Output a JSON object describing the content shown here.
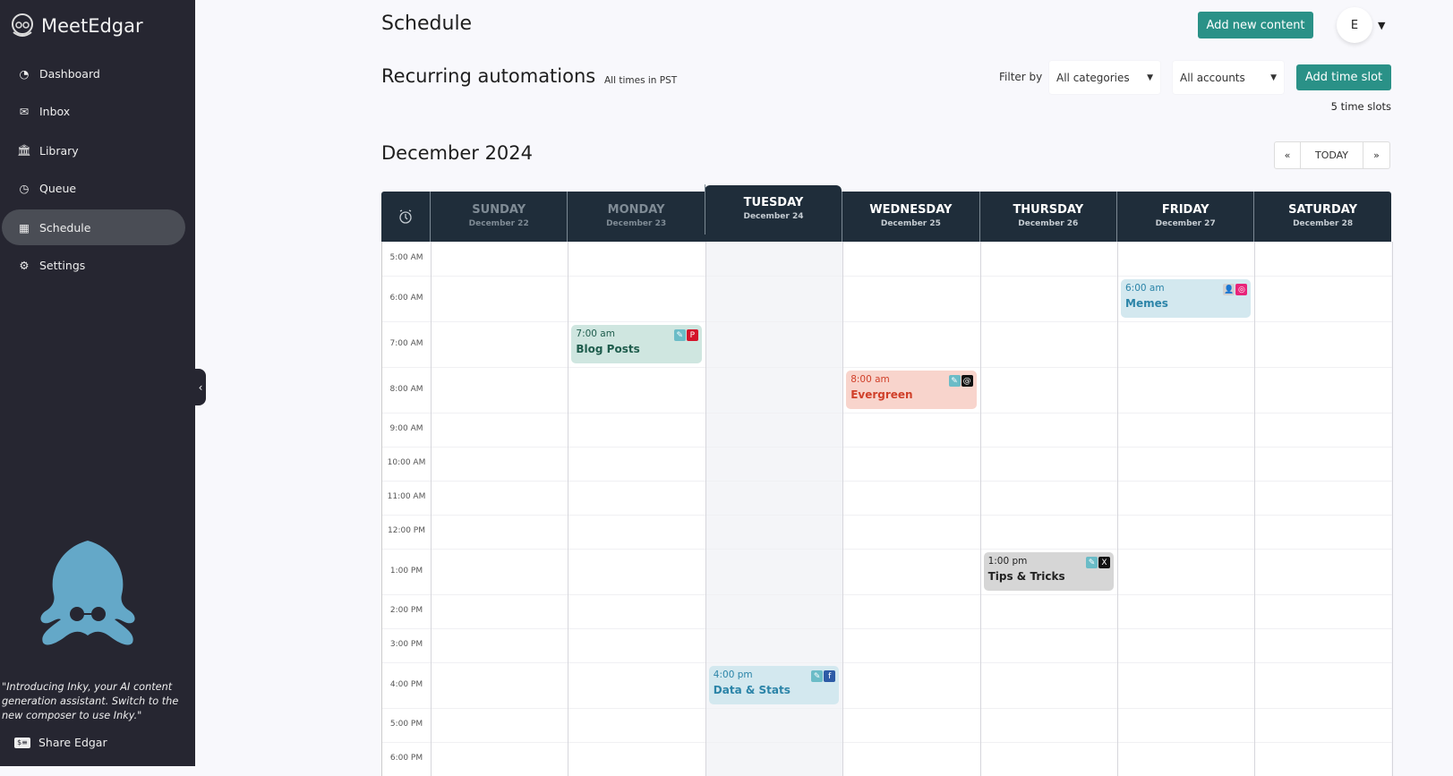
{
  "sidebar": {
    "brand": "MeetEdgar",
    "items": [
      {
        "label": "Dashboard",
        "icon": "dashboard-icon"
      },
      {
        "label": "Inbox",
        "icon": "envelope-icon"
      },
      {
        "label": "Library",
        "icon": "library-icon"
      },
      {
        "label": "Queue",
        "icon": "clock-icon"
      },
      {
        "label": "Schedule",
        "icon": "calendar-icon",
        "active": true
      },
      {
        "label": "Settings",
        "icon": "gear-icon"
      }
    ],
    "promo": "\"Introducing Inky, your AI content generation assistant. Switch to the new composer to use Inky.\"",
    "share": "Share Edgar"
  },
  "header": {
    "title": "Schedule",
    "add_content": "Add new content",
    "avatar": "E"
  },
  "automations": {
    "title": "Recurring automations",
    "timezone": "All times in PST",
    "filter_label": "Filter by",
    "category_select": "All categories",
    "account_select": "All accounts",
    "add_slot": "Add time slot",
    "slot_count": "5 time slots"
  },
  "calendar": {
    "month": "December 2024",
    "prev": "«",
    "today": "TODAY",
    "next": "»",
    "days": [
      {
        "name": "SUNDAY",
        "date": "December 22",
        "past": true
      },
      {
        "name": "MONDAY",
        "date": "December 23",
        "past": true
      },
      {
        "name": "TUESDAY",
        "date": "December 24",
        "today": true
      },
      {
        "name": "WEDNESDAY",
        "date": "December 25"
      },
      {
        "name": "THURSDAY",
        "date": "December 26"
      },
      {
        "name": "FRIDAY",
        "date": "December 27"
      },
      {
        "name": "SATURDAY",
        "date": "December 28"
      }
    ],
    "times": [
      "5:00 AM",
      "6:00 AM",
      "7:00 AM",
      "8:00 AM",
      "9:00 AM",
      "10:00 AM",
      "11:00 AM",
      "12:00 PM",
      "1:00 PM",
      "2:00 PM",
      "3:00 PM",
      "4:00 PM",
      "5:00 PM",
      "6:00 PM"
    ],
    "events": [
      {
        "day": 5,
        "slot": "6:00 AM",
        "time": "6:00 am",
        "name": "Memes",
        "bg": "#d3e8ef",
        "color": "#2b84a8",
        "icons": [
          {
            "name": "user-icon",
            "bg": "#d0d0d0",
            "glyph": "👤"
          },
          {
            "name": "instagram-icon",
            "bg": "#e8247a",
            "glyph": "◎"
          }
        ]
      },
      {
        "day": 1,
        "slot": "7:00 AM",
        "time": "7:00 am",
        "name": "Blog Posts",
        "bg": "#cfe6e0",
        "color": "#1e5c4c",
        "icons": [
          {
            "name": "category-icon",
            "bg": "#6bbcc7",
            "glyph": "✎"
          },
          {
            "name": "pinterest-icon",
            "bg": "#d4132a",
            "glyph": "P"
          }
        ]
      },
      {
        "day": 3,
        "slot": "8:00 AM",
        "time": "8:00 am",
        "name": "Evergreen",
        "bg": "#f8d4cc",
        "color": "#d0402a",
        "icons": [
          {
            "name": "category-icon",
            "bg": "#6bbcc7",
            "glyph": "✎"
          },
          {
            "name": "threads-icon",
            "bg": "#111",
            "glyph": "@"
          }
        ]
      },
      {
        "day": 4,
        "slot": "1:00 PM",
        "time": "1:00 pm",
        "name": "Tips & Tricks",
        "bg": "#d6d6d6",
        "color": "#222",
        "icons": [
          {
            "name": "category-icon",
            "bg": "#6bbcc7",
            "glyph": "✎"
          },
          {
            "name": "x-icon",
            "bg": "#111",
            "glyph": "X"
          }
        ]
      },
      {
        "day": 2,
        "slot": "4:00 PM",
        "time": "4:00 pm",
        "name": "Data & Stats",
        "bg": "#d3e8ef",
        "color": "#2b84a8",
        "icons": [
          {
            "name": "category-icon",
            "bg": "#6bbcc7",
            "glyph": "✎"
          },
          {
            "name": "facebook-icon",
            "bg": "#2d5ba6",
            "glyph": "f"
          }
        ]
      }
    ]
  }
}
